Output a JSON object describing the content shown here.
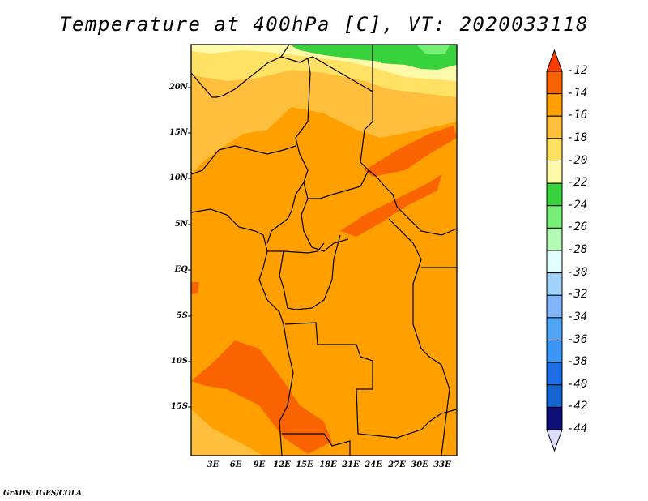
{
  "title": "Temperature at 400hPa [C], VT: 2020033118",
  "footer": "GrADS: IGES/COLA",
  "lat_labels": [
    "20N",
    "15N",
    "10N",
    "5N",
    "EQ",
    "5S",
    "10S",
    "15S"
  ],
  "lon_labels": [
    "3E",
    "6E",
    "9E",
    "12E",
    "15E",
    "18E",
    "21E",
    "24E",
    "27E",
    "30E",
    "33E"
  ],
  "colorbar": {
    "labels": [
      "-12",
      "-14",
      "-16",
      "-18",
      "-20",
      "-22",
      "-24",
      "-26",
      "-28",
      "-30",
      "-32",
      "-34",
      "-36",
      "-38",
      "-40",
      "-42",
      "-44"
    ],
    "top_color": "#ff3c00",
    "bottom_color": "#dcdcff",
    "colors": [
      "#fa6400",
      "#ffa000",
      "#ffbe3c",
      "#ffe164",
      "#fffaaa",
      "#37d23c",
      "#78f078",
      "#b4fab4",
      "#e1ffff",
      "#a0d2fa",
      "#82b4fa",
      "#50a5f5",
      "#3c96f5",
      "#1e6ee6",
      "#1464d2",
      "#0f0f78"
    ]
  }
}
